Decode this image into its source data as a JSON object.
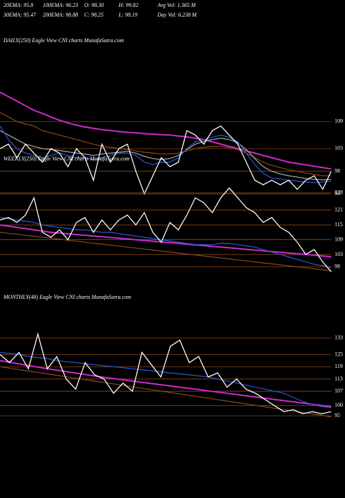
{
  "header": {
    "stats": [
      [
        "20EMA: 95.8",
        "100EMA: 96.23",
        "O: 98.30",
        "H: 99.82",
        "Avg Vol: 1.365 M"
      ],
      [
        "30EMA: 95.47",
        "200EMA: 98.88",
        "C: 98.25",
        "L: 98.19",
        "Day Vol: 6.238 M"
      ]
    ]
  },
  "chart_data": [
    {
      "type": "line",
      "title": "DAILY(250) Eagle  View  CNI charts MunafaSutra.com",
      "grid": true,
      "ylim": [
        91.5,
        116
      ],
      "yticks": [
        109,
        103,
        98,
        93
      ],
      "series": [
        {
          "color": "#d02ad0",
          "values": [
            115.5,
            114.5,
            113.5,
            112.5,
            111.5,
            110.8,
            110,
            109.3,
            108.7,
            108.2,
            107.8,
            107.5,
            107.2,
            107,
            106.8,
            106.6,
            106.5,
            106.3,
            106.2,
            106.1,
            106,
            105.8,
            105.6,
            105.3,
            105,
            104.5,
            104,
            103.5,
            103,
            102.5,
            102,
            101.5,
            101,
            100.5,
            100,
            99.7,
            99.4,
            99.1,
            98.8,
            98.5
          ]
        },
        {
          "color": "#8b4a1a",
          "values": [
            111,
            110,
            109,
            108.5,
            108,
            107,
            106.5,
            106,
            105.5,
            105,
            104.5,
            104,
            103.5,
            103.3,
            103,
            102.8,
            102.5,
            102.2,
            102,
            101.8,
            101.8,
            102,
            102.5,
            103,
            103.3,
            103.5,
            103.5,
            103.2,
            102.8,
            102,
            101,
            100,
            99.3,
            98.8,
            98.3,
            98,
            97.6,
            97.3,
            97,
            97
          ]
        },
        {
          "color": "#aaaaaa",
          "values": [
            107,
            106,
            105,
            104,
            103.5,
            103,
            102.8,
            102.6,
            102.3,
            102,
            101.8,
            101.5,
            101.8,
            102,
            102.2,
            102.4,
            102,
            101.3,
            100.8,
            100.6,
            100.8,
            101.5,
            102.8,
            104,
            104.6,
            105,
            105.3,
            105,
            104.3,
            102.8,
            100.8,
            99,
            98,
            97.4,
            97,
            96.7,
            96.4,
            96.2,
            96.1,
            96.2
          ]
        },
        {
          "color": "#2a5ad8",
          "values": [
            108,
            105,
            103,
            102,
            101.5,
            101,
            101.5,
            102,
            101.5,
            101,
            101,
            100.5,
            101,
            101.5,
            102,
            102,
            101.5,
            100,
            99.5,
            100,
            100,
            101,
            103,
            104.5,
            105,
            105.5,
            106,
            105.5,
            104.5,
            102,
            99.5,
            97.5,
            96.5,
            96.3,
            96,
            95.8,
            95.6,
            95.5,
            95.6,
            95.8
          ]
        },
        {
          "color": "#ffffff",
          "values": [
            103,
            104,
            101,
            104,
            102,
            100,
            103,
            102,
            99,
            103,
            101,
            96,
            104,
            100,
            103,
            104,
            98,
            93,
            97,
            101,
            99,
            100,
            107,
            106,
            104,
            107,
            108,
            106,
            104,
            100,
            96,
            95,
            96,
            95,
            96,
            94,
            96,
            97,
            94,
            98
          ]
        }
      ]
    },
    {
      "type": "line",
      "title": "WEEKLY(250) Eagle  View  CNI charts MunafaSutra.com",
      "grid": true,
      "ylim": [
        94,
        130.5
      ],
      "yticks": [
        128,
        121,
        115,
        109,
        103,
        98
      ],
      "series": [
        {
          "color": "#d02ad0",
          "values": [
            115,
            114.5,
            114,
            113.5,
            113,
            112.5,
            112,
            111.7,
            111.4,
            111.1,
            110.8,
            110.5,
            110.2,
            109.9,
            109.6,
            109.3,
            109,
            108.7,
            108.4,
            108.1,
            107.8,
            107.5,
            107.2,
            106.9,
            106.6,
            106.3,
            106,
            105.7,
            105.4,
            105.1,
            104.8,
            104.5,
            104.2,
            103.9,
            103.6,
            103.3,
            103,
            102.7,
            102.4,
            102.1
          ]
        },
        {
          "color": "#8b4a1a",
          "values": [
            112,
            111.6,
            111.2,
            110.8,
            110.4,
            110,
            109.6,
            109.2,
            108.8,
            108.4,
            108,
            107.6,
            107.2,
            106.8,
            106.4,
            106,
            105.6,
            105.2,
            104.8,
            104.4,
            104,
            103.6,
            103.2,
            102.8,
            102.4,
            102,
            101.6,
            101.2,
            100.8,
            100.4,
            100,
            99.6,
            99.2,
            98.8,
            98.4,
            98,
            97.6,
            97.2,
            96.8,
            96.4
          ]
        },
        {
          "color": "#2a5ad8",
          "values": [
            118,
            117.5,
            117,
            116.5,
            116,
            115,
            114.5,
            114,
            113.5,
            113,
            113,
            112.5,
            112,
            112,
            111.5,
            111,
            110.5,
            110,
            109.5,
            109,
            108.5,
            108,
            107.5,
            107,
            107,
            107,
            107.5,
            107.5,
            107,
            106.5,
            106,
            105,
            104,
            103,
            102,
            101,
            100,
            99,
            98.5,
            97.5
          ]
        },
        {
          "color": "#ffffff",
          "values": [
            117,
            118,
            116,
            119,
            126,
            112,
            110,
            113,
            109,
            116,
            118,
            112,
            117,
            113,
            117,
            119,
            115,
            120,
            112,
            108,
            116,
            113,
            119,
            126,
            124,
            120,
            126,
            130,
            126,
            122,
            120,
            116,
            118,
            114,
            112,
            108,
            103,
            105,
            100,
            96
          ]
        }
      ]
    },
    {
      "type": "line",
      "title": "MONTHLY(48) Eagle  View  CNI charts MunafaSutra.com",
      "grid": true,
      "ylim": [
        92,
        136
      ],
      "yticks": [
        133,
        125,
        119,
        113,
        107,
        100,
        95
      ],
      "series": [
        {
          "color": "#d02ad0",
          "values": [
            122,
            121.2,
            120.4,
            119.6,
            118.8,
            118,
            117.3,
            116.6,
            115.9,
            115.2,
            114.5,
            113.8,
            113.2,
            112.6,
            112,
            111.4,
            110.8,
            110.2,
            109.6,
            109,
            108.4,
            107.8,
            107.2,
            106.6,
            106,
            105.4,
            104.8,
            104.2,
            103.6,
            103,
            102.4,
            101.8,
            101.2,
            100.6,
            100,
            99.4
          ]
        },
        {
          "color": "#8b4a1a",
          "values": [
            119,
            118.3,
            117.6,
            116.9,
            116.2,
            115.5,
            114.8,
            114.1,
            113.4,
            112.7,
            112,
            111.3,
            110.6,
            109.9,
            109.2,
            108.5,
            107.8,
            107.1,
            106.4,
            105.7,
            105,
            104.3,
            103.6,
            102.9,
            102.2,
            101.5,
            100.8,
            100.1,
            99.4,
            98.7,
            98,
            97.3,
            96.6,
            95.9,
            95.2,
            94.5
          ]
        },
        {
          "color": "#2a5ad8",
          "values": [
            126,
            125.5,
            125,
            124,
            123.5,
            123,
            122,
            121.5,
            121,
            120.5,
            120,
            119.5,
            119,
            118.5,
            118,
            117.5,
            117,
            116.5,
            116,
            115.5,
            115,
            114.5,
            114,
            113,
            112,
            111,
            110,
            109,
            108,
            107,
            106,
            104,
            102,
            100.5,
            99.5,
            99
          ]
        },
        {
          "color": "#ffffff",
          "values": [
            125,
            121,
            126,
            118,
            135,
            118,
            124,
            113,
            108,
            121,
            115,
            113,
            106,
            111,
            107,
            126,
            120,
            114,
            129,
            132,
            121,
            124,
            114,
            116,
            109,
            113,
            108,
            106,
            103,
            100,
            97,
            98,
            96,
            97,
            96,
            97
          ]
        }
      ]
    }
  ]
}
